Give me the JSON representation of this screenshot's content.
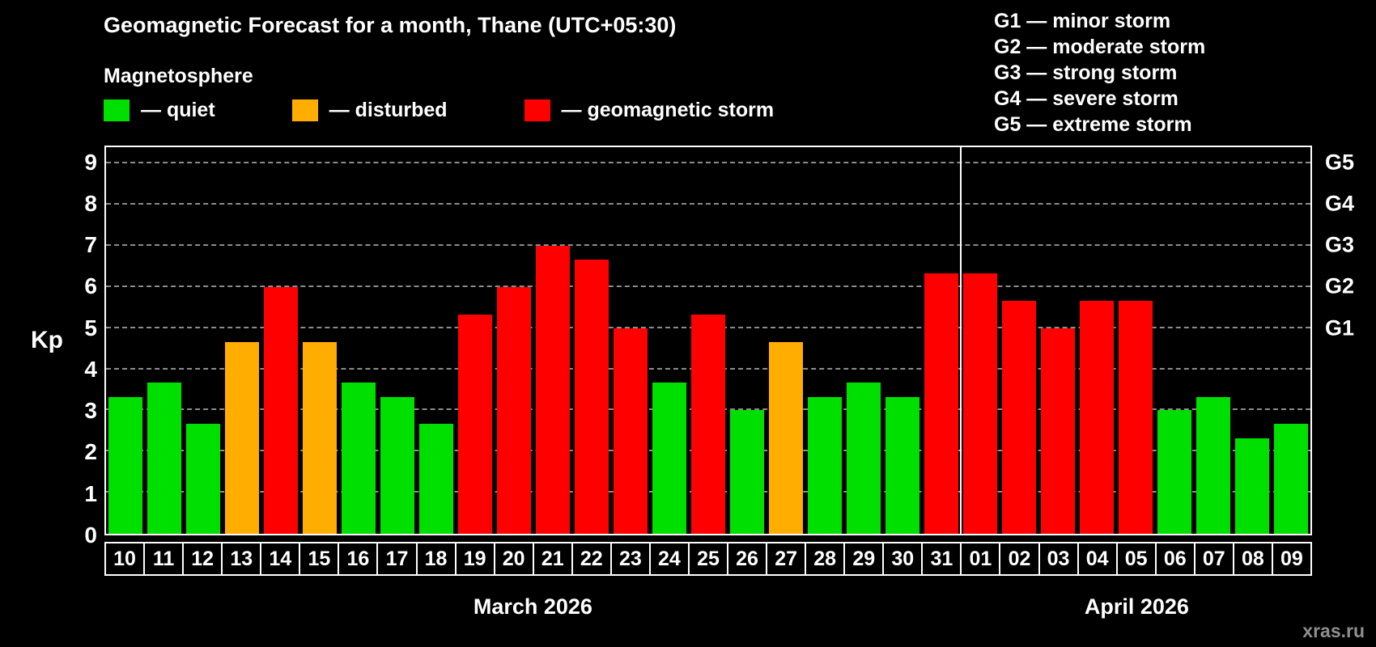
{
  "header": {
    "title": "Geomagnetic Forecast for a month, Thane (UTC+05:30)",
    "subtitle": "Magnetosphere"
  },
  "legend": {
    "quiet": "— quiet",
    "disturbed": "— disturbed",
    "storm": "— geomagnetic storm"
  },
  "g_legend": [
    "G1 — minor storm",
    "G2 — moderate storm",
    "G3 — strong storm",
    "G4 — severe storm",
    "G5 — extreme storm"
  ],
  "watermark": "xras.ru",
  "colors": {
    "quiet": "#00e000",
    "disturbed": "#ffae00",
    "storm": "#ff0000",
    "grid": "#8c8c8c",
    "axis": "#ffffff",
    "background": "#000000"
  },
  "chart_data": {
    "type": "bar",
    "title": "Geomagnetic Forecast for a month, Thane (UTC+05:30)",
    "xlabel": "",
    "ylabel": "Kp",
    "ylim": [
      0,
      9
    ],
    "grid": "dashed horizontal",
    "y_ticks": [
      0,
      1,
      2,
      3,
      4,
      5,
      6,
      7,
      8,
      9
    ],
    "right_axis_labels": [
      {
        "label": "G1",
        "kp": 5
      },
      {
        "label": "G2",
        "kp": 6
      },
      {
        "label": "G3",
        "kp": 7
      },
      {
        "label": "G4",
        "kp": 8
      },
      {
        "label": "G5",
        "kp": 9
      }
    ],
    "months": [
      {
        "label": "March 2026",
        "start_index": 0,
        "count": 22
      },
      {
        "label": "April 2026",
        "start_index": 22,
        "count": 9
      }
    ],
    "bars": [
      {
        "day": "10",
        "kp": 3.33,
        "level": "quiet"
      },
      {
        "day": "11",
        "kp": 3.67,
        "level": "quiet"
      },
      {
        "day": "12",
        "kp": 2.67,
        "level": "quiet"
      },
      {
        "day": "13",
        "kp": 4.67,
        "level": "disturbed"
      },
      {
        "day": "14",
        "kp": 6.0,
        "level": "storm"
      },
      {
        "day": "15",
        "kp": 4.67,
        "level": "disturbed"
      },
      {
        "day": "16",
        "kp": 3.67,
        "level": "quiet"
      },
      {
        "day": "17",
        "kp": 3.33,
        "level": "quiet"
      },
      {
        "day": "18",
        "kp": 2.67,
        "level": "quiet"
      },
      {
        "day": "19",
        "kp": 5.33,
        "level": "storm"
      },
      {
        "day": "20",
        "kp": 6.0,
        "level": "storm"
      },
      {
        "day": "21",
        "kp": 7.0,
        "level": "storm"
      },
      {
        "day": "22",
        "kp": 6.67,
        "level": "storm"
      },
      {
        "day": "23",
        "kp": 5.0,
        "level": "storm"
      },
      {
        "day": "24",
        "kp": 3.67,
        "level": "quiet"
      },
      {
        "day": "25",
        "kp": 5.33,
        "level": "storm"
      },
      {
        "day": "26",
        "kp": 3.0,
        "level": "quiet"
      },
      {
        "day": "27",
        "kp": 4.67,
        "level": "disturbed"
      },
      {
        "day": "28",
        "kp": 3.33,
        "level": "quiet"
      },
      {
        "day": "29",
        "kp": 3.67,
        "level": "quiet"
      },
      {
        "day": "30",
        "kp": 3.33,
        "level": "quiet"
      },
      {
        "day": "31",
        "kp": 6.33,
        "level": "storm"
      },
      {
        "day": "01",
        "kp": 6.33,
        "level": "storm"
      },
      {
        "day": "02",
        "kp": 5.67,
        "level": "storm"
      },
      {
        "day": "03",
        "kp": 5.0,
        "level": "storm"
      },
      {
        "day": "04",
        "kp": 5.67,
        "level": "storm"
      },
      {
        "day": "05",
        "kp": 5.67,
        "level": "storm"
      },
      {
        "day": "06",
        "kp": 3.0,
        "level": "quiet"
      },
      {
        "day": "07",
        "kp": 3.33,
        "level": "quiet"
      },
      {
        "day": "08",
        "kp": 2.33,
        "level": "quiet"
      },
      {
        "day": "09",
        "kp": 2.67,
        "level": "quiet"
      }
    ]
  }
}
